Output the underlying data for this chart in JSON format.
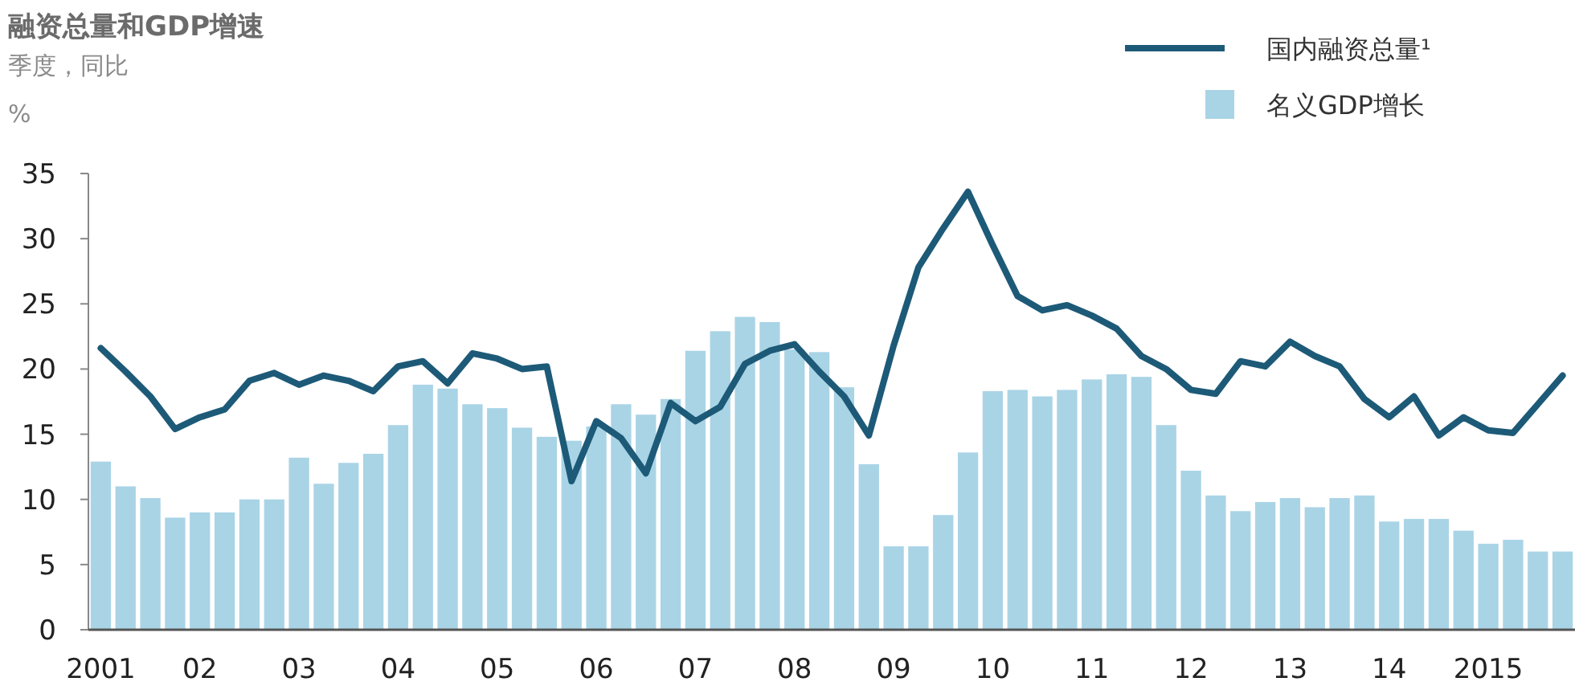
{
  "chart_data": {
    "type": "bar",
    "title": "融资总量和GDP增速",
    "subtitle": "季度，同比",
    "ylabel": "%",
    "categories": [
      "2001",
      null,
      null,
      null,
      "02",
      null,
      null,
      null,
      "03",
      null,
      null,
      null,
      "04",
      null,
      null,
      null,
      "05",
      null,
      null,
      null,
      "06",
      null,
      null,
      null,
      "07",
      null,
      null,
      null,
      "08",
      null,
      null,
      null,
      "09",
      null,
      null,
      null,
      "10",
      null,
      null,
      null,
      "11",
      null,
      null,
      null,
      "12",
      null,
      null,
      null,
      "13",
      null,
      null,
      null,
      "14",
      null,
      null,
      null,
      "2015",
      null,
      null,
      null
    ],
    "series": [
      {
        "name": "名义GDP增长",
        "color": "#a9d4e6",
        "values": [
          12.9,
          11.0,
          10.1,
          8.6,
          9.0,
          9.0,
          10.0,
          10.0,
          13.2,
          11.2,
          12.8,
          13.5,
          15.7,
          18.8,
          18.5,
          17.3,
          17.0,
          15.5,
          14.8,
          14.5,
          15.6,
          17.3,
          16.5,
          17.7,
          21.4,
          22.9,
          24.0,
          23.6,
          21.5,
          21.3,
          18.6,
          12.7,
          6.4,
          6.4,
          8.8,
          13.6,
          18.3,
          18.4,
          17.9,
          18.4,
          19.2,
          19.6,
          19.4,
          15.7,
          12.2,
          10.3,
          9.1,
          9.8,
          10.1,
          9.4,
          10.1,
          10.3,
          8.3,
          8.5,
          8.5,
          7.6,
          6.6,
          6.9,
          6.0,
          6.0
        ]
      },
      {
        "name": "国内融资总量¹",
        "type": "line",
        "color": "#1d5a78",
        "values": [
          21.6,
          19.8,
          17.9,
          15.4,
          16.3,
          16.9,
          19.1,
          19.7,
          18.8,
          19.5,
          19.1,
          18.3,
          20.2,
          20.6,
          18.9,
          21.2,
          20.8,
          20.0,
          20.2,
          11.4,
          16.0,
          14.7,
          12.0,
          17.4,
          16.0,
          17.1,
          20.4,
          21.4,
          21.9,
          19.8,
          17.9,
          14.9,
          21.8,
          27.8,
          30.8,
          33.6,
          29.5,
          25.6,
          24.5,
          24.9,
          24.1,
          23.1,
          21.0,
          20.0,
          18.4,
          18.1,
          20.6,
          20.2,
          22.1,
          21.0,
          20.2,
          17.7,
          16.3,
          17.9,
          14.9,
          16.3,
          15.3,
          15.1,
          17.3,
          19.5
        ]
      }
    ],
    "ylim": [
      0,
      35
    ],
    "yticks": [
      0,
      5,
      10,
      15,
      20,
      25,
      30,
      35
    ],
    "legend": "top right"
  }
}
